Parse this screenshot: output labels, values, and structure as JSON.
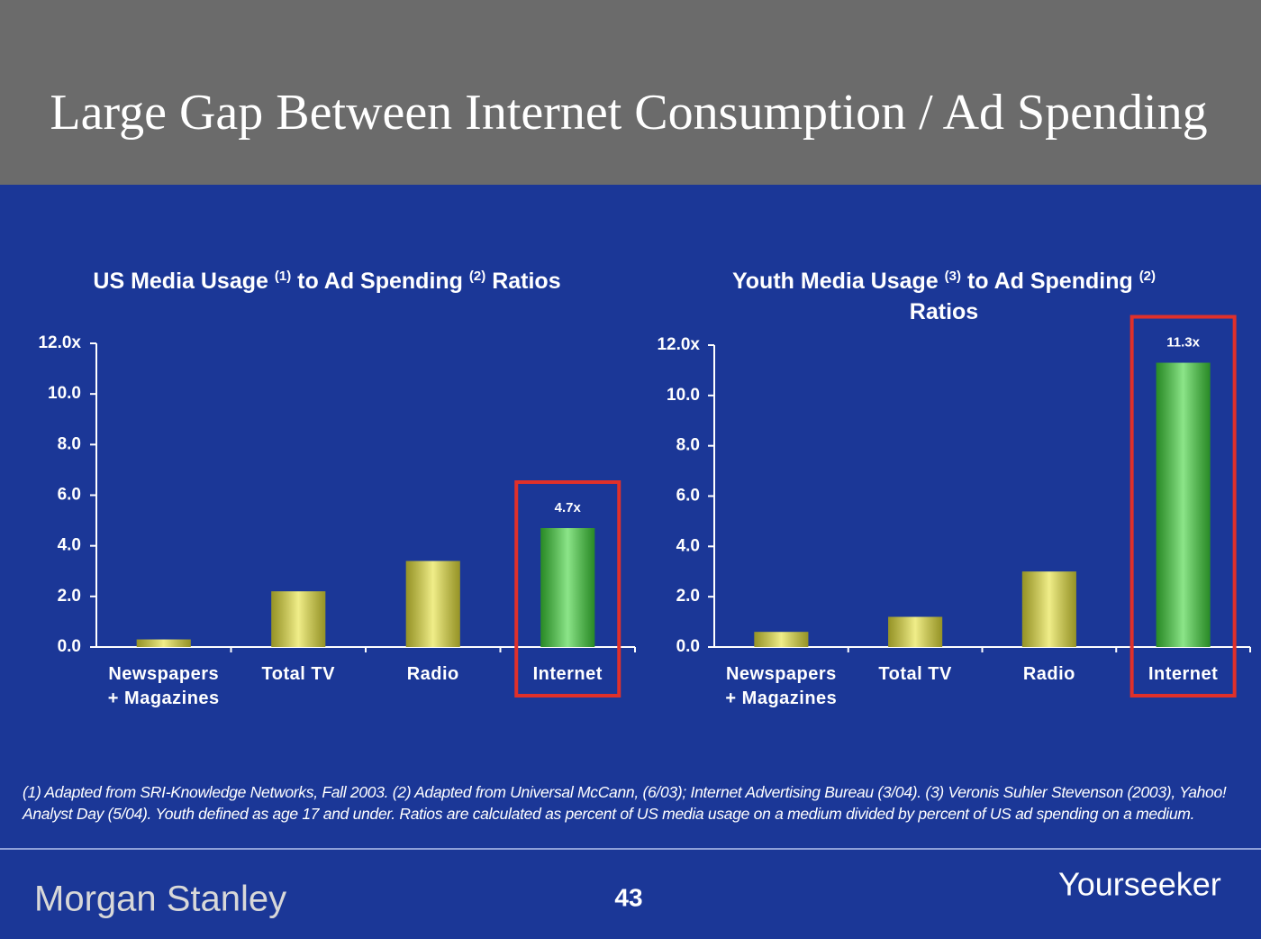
{
  "title": "Large Gap Between Internet Consumption / Ad Spending",
  "chart_data": [
    {
      "type": "bar",
      "title": [
        "US Media Usage",
        "(1)",
        "to Ad Spending",
        "(2)",
        "Ratios"
      ],
      "categories": [
        "Newspapers + Magazines",
        "Total TV",
        "Radio",
        "Internet"
      ],
      "values": [
        0.3,
        2.2,
        3.4,
        4.7
      ],
      "value_labels": [
        null,
        null,
        null,
        "4.7x"
      ],
      "colors": [
        "#e6e23a",
        "#e6e23a",
        "#e6e23a",
        "#3fd43a"
      ],
      "highlight_color": "#e0302a",
      "ylim": [
        0,
        12
      ],
      "yticks": [
        {
          "value": 0,
          "label": "0.0"
        },
        {
          "value": 2,
          "label": "2.0"
        },
        {
          "value": 4,
          "label": "4.0"
        },
        {
          "value": 6,
          "label": "6.0"
        },
        {
          "value": 8,
          "label": "8.0"
        },
        {
          "value": 10,
          "label": "10.0"
        },
        {
          "value": 12,
          "label": "12.0x"
        }
      ]
    },
    {
      "type": "bar",
      "title": [
        "Youth Media Usage",
        "(3)",
        "to Ad Spending",
        "(2)",
        "Ratios"
      ],
      "categories": [
        "Newspapers + Magazines",
        "Total TV",
        "Radio",
        "Internet"
      ],
      "values": [
        0.6,
        1.2,
        3.0,
        11.3
      ],
      "value_labels": [
        null,
        null,
        null,
        "11.3x"
      ],
      "colors": [
        "#e6e23a",
        "#e6e23a",
        "#e6e23a",
        "#3fd43a"
      ],
      "highlight_color": "#e0302a",
      "ylim": [
        0,
        12
      ],
      "yticks": [
        {
          "value": 0,
          "label": "0.0"
        },
        {
          "value": 2,
          "label": "2.0"
        },
        {
          "value": 4,
          "label": "4.0"
        },
        {
          "value": 6,
          "label": "6.0"
        },
        {
          "value": 8,
          "label": "8.0"
        },
        {
          "value": 10,
          "label": "10.0"
        },
        {
          "value": 12,
          "label": "12.0x"
        }
      ]
    }
  ],
  "footnote": "(1) Adapted from SRI-Knowledge Networks, Fall 2003.  (2) Adapted from Universal McCann, (6/03); Internet Advertising Bureau (3/04). (3) Veronis Suhler Stevenson (2003), Yahoo! Analyst Day (5/04).  Youth defined as age 17 and under.  Ratios are calculated as percent of US media usage on a medium divided by percent of US ad spending on a medium.",
  "logo": "Morgan Stanley",
  "page_number": "43",
  "watermark": "Yourseeker"
}
